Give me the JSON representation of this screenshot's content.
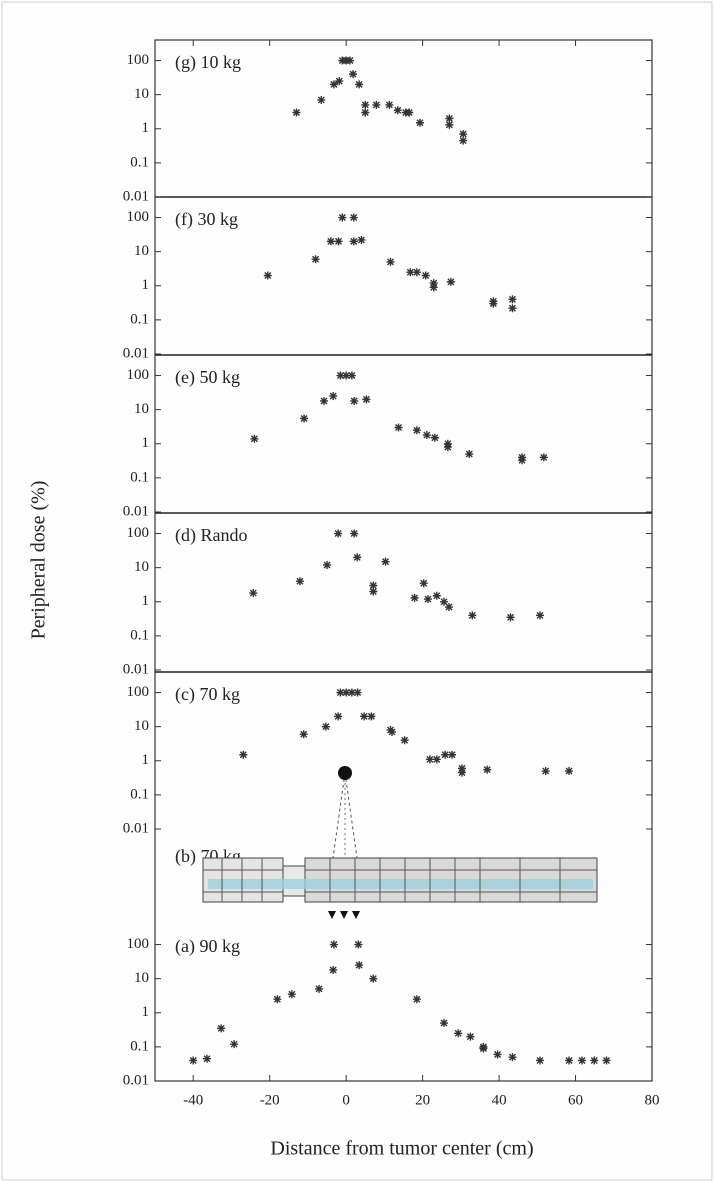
{
  "chart_data": {
    "type": "scatter",
    "xlabel": "Distance from tumor center (cm)",
    "ylabel": "Peripheral dose (%)",
    "xlim": [
      -50,
      80
    ],
    "xticks": [
      -40,
      -20,
      0,
      20,
      40,
      60,
      80
    ],
    "log_y": true,
    "marker_color": "#333333",
    "diagram_label": "(b) 70 kg",
    "panels": [
      {
        "label": "(g) 10 kg",
        "ylim": [
          0.01,
          400
        ],
        "yticks": [
          0.01,
          0.1,
          1,
          10,
          100
        ],
        "x": [
          -13,
          -6.5,
          -3.2,
          -1.8,
          -1,
          0,
          1,
          1.8,
          3.4,
          5,
          5,
          7.9,
          11.3,
          13.5,
          15.6,
          16.5,
          19.3,
          27,
          27,
          30.6,
          30.6
        ],
        "values": [
          3,
          7,
          20,
          25,
          100,
          100,
          100,
          40,
          20,
          5,
          3,
          5,
          5,
          3.5,
          3,
          3,
          1.5,
          2,
          1.3,
          0.7,
          0.45
        ]
      },
      {
        "label": "(f) 30 kg",
        "ylim": [
          0.01,
          400
        ],
        "yticks": [
          0.01,
          0.1,
          1,
          10,
          100
        ],
        "x": [
          -20.5,
          -8,
          -4,
          -2,
          -1,
          2,
          2,
          4,
          11.6,
          16.8,
          18.5,
          20.8,
          22.9,
          22.9,
          27.4,
          38.5,
          38.5,
          43.5,
          43.5
        ],
        "values": [
          2,
          6,
          20,
          20,
          100,
          100,
          20,
          22,
          5,
          2.5,
          2.5,
          2,
          1.2,
          0.9,
          1.3,
          0.35,
          0.3,
          0.4,
          0.22
        ]
      },
      {
        "label": "(e) 50 kg",
        "ylim": [
          0.01,
          400
        ],
        "yticks": [
          0.01,
          0.1,
          1,
          10,
          100
        ],
        "x": [
          -24,
          -11,
          -5.8,
          -3.4,
          -1.5,
          0,
          1.5,
          2.1,
          5.3,
          13.7,
          18.5,
          21.1,
          23.2,
          26.6,
          26.6,
          32.2,
          46,
          46,
          51.7
        ],
        "values": [
          1.4,
          5.5,
          18,
          25,
          100,
          100,
          100,
          18,
          20,
          3,
          2.5,
          1.8,
          1.5,
          1,
          0.8,
          0.5,
          0.4,
          0.33,
          0.4
        ]
      },
      {
        "label": "(d) Rando",
        "ylim": [
          0.01,
          400
        ],
        "yticks": [
          0.01,
          0.1,
          1,
          10,
          100
        ],
        "x": [
          -24.3,
          -12.1,
          -5,
          -2.1,
          2.1,
          2.9,
          7.1,
          7.1,
          10.3,
          17.9,
          20.3,
          21.4,
          23.7,
          25.6,
          26.9,
          33,
          43,
          50.7
        ],
        "values": [
          1.8,
          4,
          12,
          100,
          100,
          20,
          3,
          2,
          15,
          1.3,
          3.5,
          1.2,
          1.5,
          1,
          0.7,
          0.4,
          0.35,
          0.4
        ]
      },
      {
        "label": "(c) 70 kg",
        "ylim": [
          0.01,
          400
        ],
        "yticks": [
          0.01,
          0.1,
          1,
          10,
          100
        ],
        "x": [
          -26.9,
          -11.1,
          -5.3,
          -2.1,
          -1.5,
          0,
          1.5,
          3,
          4.7,
          6.6,
          11.6,
          12,
          15.3,
          21.9,
          23.7,
          25.9,
          27.7,
          30.3,
          30.3,
          36.9,
          52.2,
          58.3
        ],
        "values": [
          1.5,
          6,
          10,
          20,
          100,
          100,
          100,
          100,
          20,
          20,
          8,
          7,
          4,
          1.1,
          1.1,
          1.5,
          1.5,
          0.6,
          0.45,
          0.55,
          0.5,
          0.5
        ]
      },
      {
        "label": "(a) 90 kg",
        "ylim": [
          0.01,
          400
        ],
        "yticks": [
          0.01,
          0.1,
          1,
          10,
          100
        ],
        "x": [
          -40,
          -36.4,
          -32.7,
          -29.3,
          -18,
          -14.2,
          -7.1,
          -3.4,
          -3.2,
          3.2,
          3.4,
          7.1,
          18.5,
          25.6,
          29.3,
          32.5,
          35.9,
          35.9,
          39.6,
          43.5,
          50.7,
          58.3,
          61.7,
          64.9,
          68.1
        ],
        "values": [
          0.04,
          0.045,
          0.35,
          0.12,
          2.5,
          3.5,
          5,
          18,
          100,
          100,
          25,
          10,
          2.5,
          0.5,
          0.25,
          0.2,
          0.1,
          0.09,
          0.06,
          0.05,
          0.04,
          0.04,
          0.04,
          0.04,
          0.04
        ]
      }
    ]
  }
}
